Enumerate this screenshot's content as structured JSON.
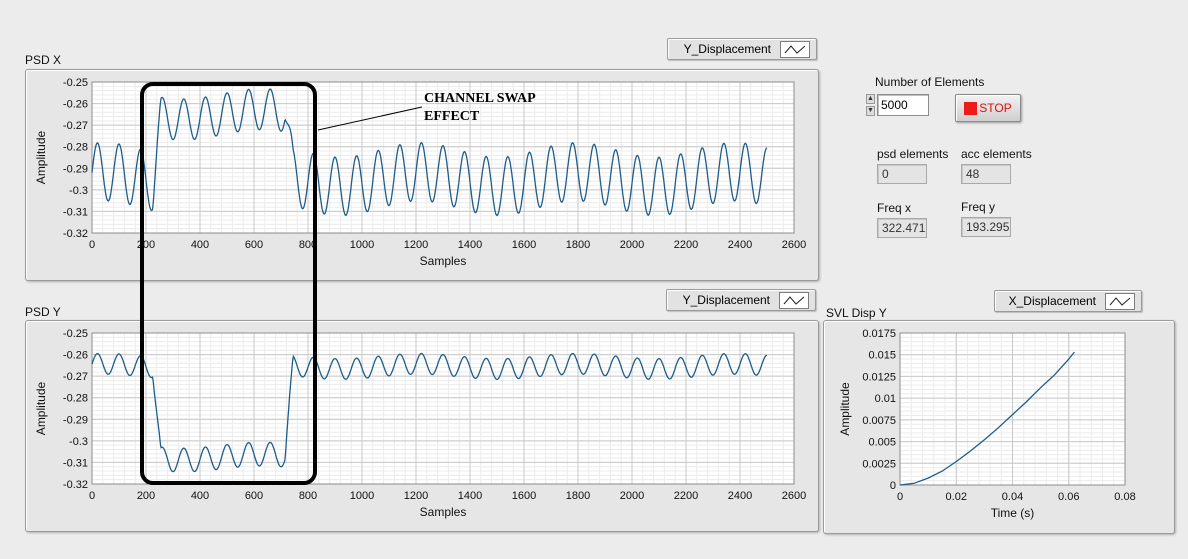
{
  "colors": {
    "trace": "#1e5c8a",
    "plot_bg": "#ffffff",
    "grid_major": "#c8c8c8",
    "grid_minor": "#ececec",
    "stop_red": "#ee1b1b",
    "annotation_box": "#000000"
  },
  "psd_x": {
    "title": "PSD X",
    "legend_label": "Y_Displacement",
    "legend_icon": "line-plot-icon"
  },
  "psd_y": {
    "title": "PSD Y",
    "legend_label": "Y_Displacement",
    "legend_icon": "line-plot-icon"
  },
  "svl": {
    "title": "SVL Disp Y",
    "legend_label": "X_Displacement",
    "legend_icon": "line-plot-icon"
  },
  "controls": {
    "number_of_elements_label": "Number of Elements",
    "number_of_elements_value": "5000",
    "stop_label": "STOP",
    "psd_elements_label": "psd elements",
    "psd_elements_value": "0",
    "acc_elements_label": "acc elements",
    "acc_elements_value": "48",
    "freq_x_label": "Freq x",
    "freq_x_value": "322.471",
    "freq_y_label": "Freq y",
    "freq_y_value": "193.295"
  },
  "annotation": {
    "line1": "CHANNEL SWAP",
    "line2": "EFFECT"
  },
  "chart_data": [
    {
      "id": "psd_x",
      "type": "line",
      "title": "PSD X",
      "xlabel": "Samples",
      "ylabel": "Amplitude",
      "xlim": [
        0,
        2600
      ],
      "ylim": [
        -0.32,
        -0.25
      ],
      "xticks": [
        "0",
        "200",
        "400",
        "600",
        "800",
        "1000",
        "1200",
        "1400",
        "1600",
        "1800",
        "2000",
        "2200",
        "2400",
        "2600"
      ],
      "yticks": [
        "-0.25",
        "-0.26",
        "-0.27",
        "-0.28",
        "-0.29",
        "-0.3",
        "-0.31",
        "-0.32"
      ],
      "series": [
        {
          "name": "Y_Displacement",
          "x_end": 2500,
          "baseline": -0.295,
          "amplitude": 0.0135,
          "period": 80,
          "swap_range": [
            255,
            715
          ],
          "swap_baseline": -0.265,
          "swap_amplitude": 0.0095
        }
      ]
    },
    {
      "id": "psd_y",
      "type": "line",
      "title": "PSD Y",
      "xlabel": "Samples",
      "ylabel": "Amplitude",
      "xlim": [
        0,
        2600
      ],
      "ylim": [
        -0.32,
        -0.25
      ],
      "xticks": [
        "0",
        "200",
        "400",
        "600",
        "800",
        "1000",
        "1200",
        "1400",
        "1600",
        "1800",
        "2000",
        "2200",
        "2400",
        "2600"
      ],
      "yticks": [
        "-0.25",
        "-0.26",
        "-0.27",
        "-0.28",
        "-0.29",
        "-0.3",
        "-0.31",
        "-0.32"
      ],
      "series": [
        {
          "name": "Y_Displacement",
          "x_end": 2500,
          "baseline": -0.2655,
          "amplitude": 0.0048,
          "period": 80,
          "swap_range": [
            255,
            715
          ],
          "swap_baseline": -0.3075,
          "swap_amplitude": 0.0055
        }
      ]
    },
    {
      "id": "svl",
      "type": "line",
      "title": "SVL Disp Y",
      "xlabel": "Time (s)",
      "ylabel": "Amplitude",
      "xlim": [
        0,
        0.08
      ],
      "ylim": [
        0,
        0.0175
      ],
      "xticks": [
        "0",
        "0.02",
        "0.04",
        "0.06",
        "0.08"
      ],
      "yticks": [
        "0.0175",
        "0.015",
        "0.0125",
        "0.01",
        "0.0075",
        "0.005",
        "0.0025",
        "0"
      ],
      "series": [
        {
          "name": "X_Displacement",
          "x": [
            0,
            0.005,
            0.01,
            0.015,
            0.02,
            0.025,
            0.03,
            0.035,
            0.04,
            0.045,
            0.05,
            0.055,
            0.06,
            0.062
          ],
          "y": [
            0,
            0.0002,
            0.0008,
            0.0016,
            0.0027,
            0.0039,
            0.0052,
            0.0066,
            0.0081,
            0.0096,
            0.0112,
            0.0127,
            0.0145,
            0.0153
          ]
        }
      ]
    }
  ]
}
